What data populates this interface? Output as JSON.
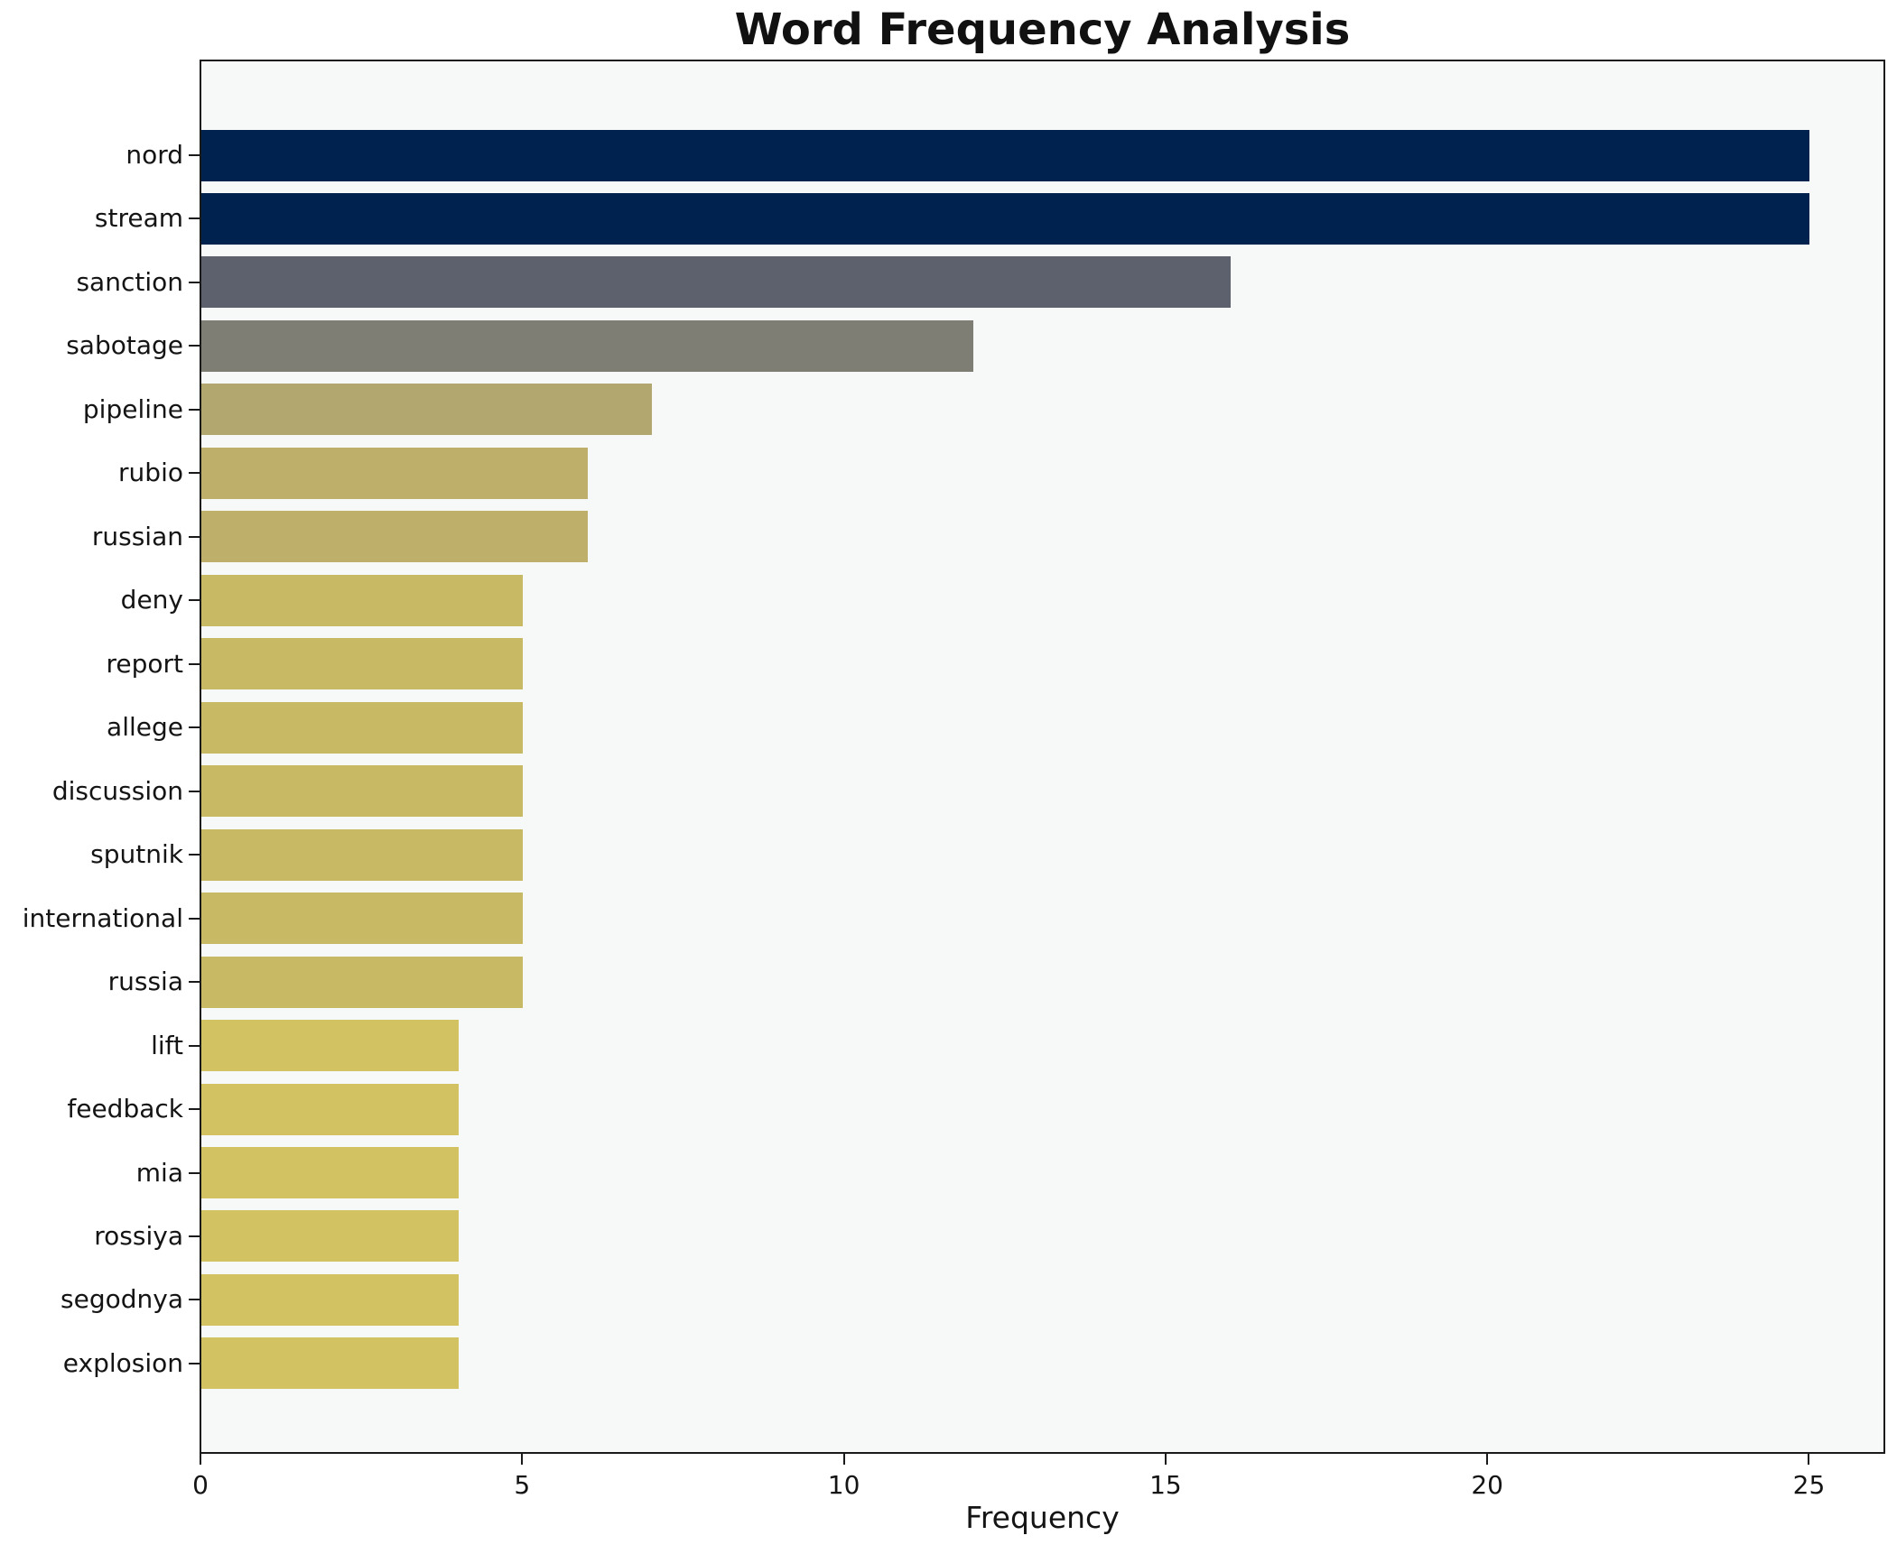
{
  "chart_data": {
    "type": "bar",
    "orientation": "horizontal",
    "title": "Word Frequency Analysis",
    "xlabel": "Frequency",
    "ylabel": "",
    "categories": [
      "nord",
      "stream",
      "sanction",
      "sabotage",
      "pipeline",
      "rubio",
      "russian",
      "deny",
      "report",
      "allege",
      "discussion",
      "sputnik",
      "international",
      "russia",
      "lift",
      "feedback",
      "mia",
      "rossiya",
      "segodnya",
      "explosion"
    ],
    "values": [
      25,
      25,
      16,
      12,
      7,
      6,
      6,
      5,
      5,
      5,
      5,
      5,
      5,
      5,
      4,
      4,
      4,
      4,
      4,
      4
    ],
    "bar_colors": [
      "#00224e",
      "#00224e",
      "#5c616d",
      "#7f7e74",
      "#b2a76e",
      "#beb06a",
      "#beb06a",
      "#c8b964",
      "#c8b964",
      "#c8b964",
      "#c8b964",
      "#c8b964",
      "#c8b964",
      "#c8b964",
      "#d3c261",
      "#d3c261",
      "#d3c261",
      "#d3c261",
      "#d3c261",
      "#d3c261"
    ],
    "x_ticks": [
      0,
      5,
      10,
      15,
      20,
      25
    ],
    "xlim": [
      0,
      26.2
    ],
    "grid": false,
    "legend": false,
    "plot_bg_color": "#f7f8f8",
    "spine_color": "#1a1a1a",
    "text_color": "#141414"
  }
}
